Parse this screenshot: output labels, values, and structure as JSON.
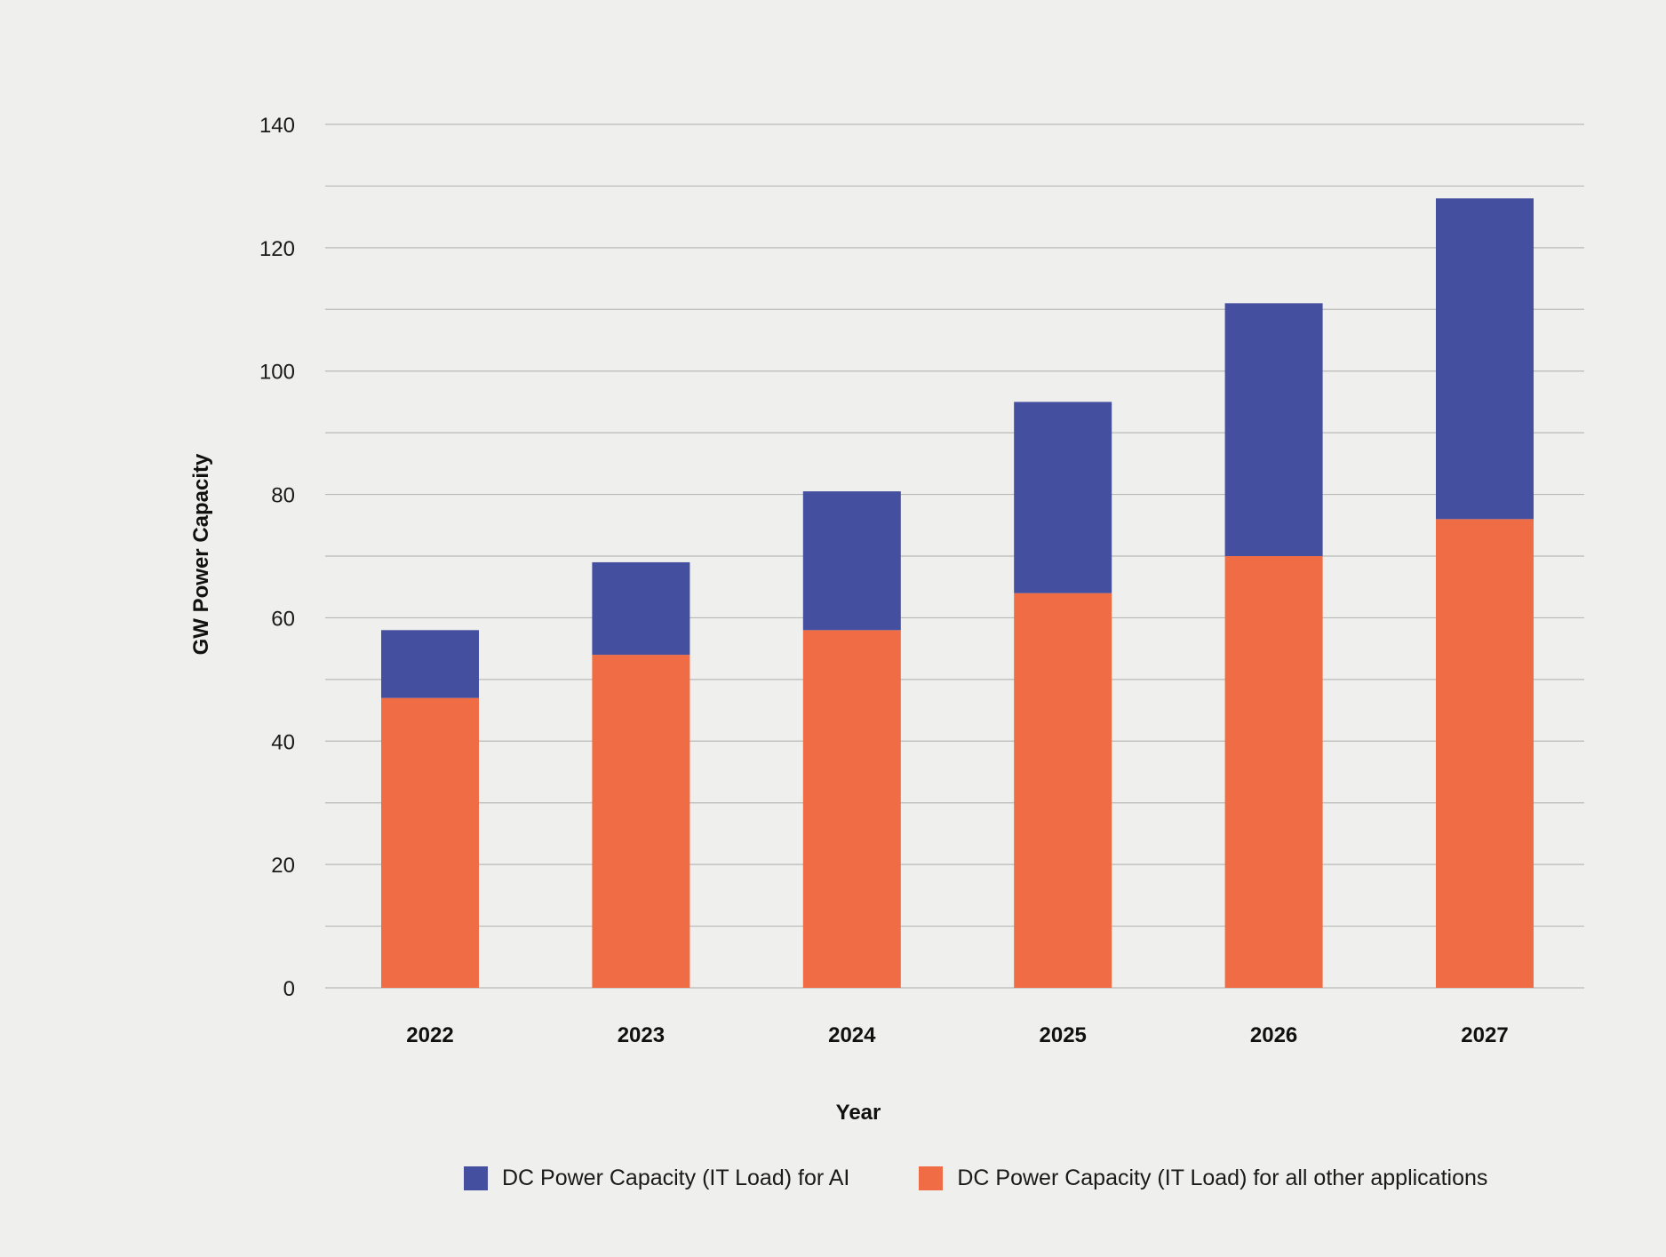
{
  "chart_data": {
    "type": "bar",
    "stacked": true,
    "title": "",
    "xlabel": "Year",
    "ylabel": "GW Power Capacity",
    "ylim": [
      0,
      140
    ],
    "yticks": [
      0,
      20,
      40,
      60,
      80,
      100,
      120,
      140
    ],
    "grid": true,
    "categories": [
      "2022",
      "2023",
      "2024",
      "2025",
      "2026",
      "2027"
    ],
    "series": [
      {
        "name": "DC Power Capacity (IT Load) for all other applications",
        "color": "#ef6c45",
        "values": [
          47,
          54,
          58,
          64,
          70,
          76
        ]
      },
      {
        "name": "DC Power Capacity (IT Load) for AI",
        "color": "#454f9f",
        "values": [
          11,
          15,
          22.5,
          31,
          41,
          52
        ]
      }
    ],
    "legend": {
      "placement": "bottom-center",
      "order": [
        1,
        0
      ]
    }
  }
}
